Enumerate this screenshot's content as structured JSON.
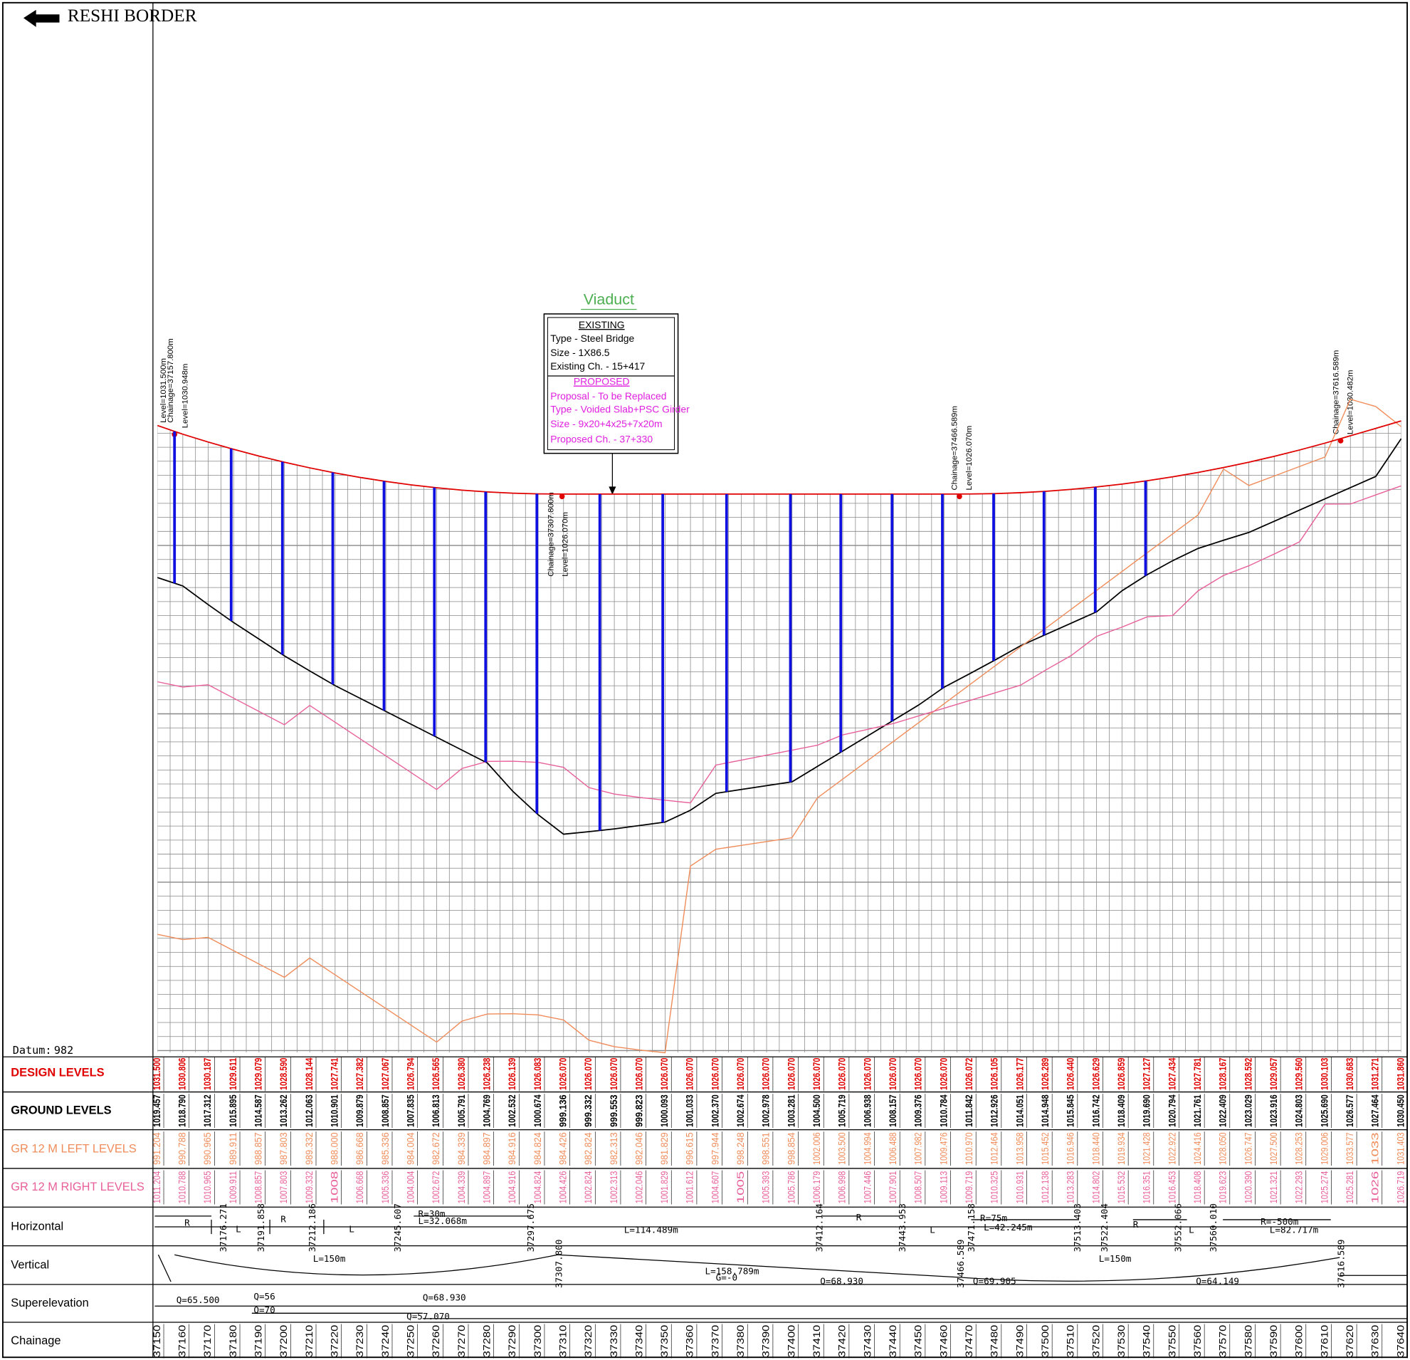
{
  "header": {
    "direction": "RESHI BORDER"
  },
  "datum": {
    "label": "Datum:",
    "value": 982
  },
  "viaduct": {
    "title": "Viaduct",
    "existing_heading": "EXISTING",
    "existing": [
      "Type - Steel Bridge",
      "Size - 1X86.5",
      "Existing Ch. - 15+417"
    ],
    "proposed_heading": "PROPOSED",
    "proposed": [
      "Proposal - To be Replaced",
      "Type - Voided Slab+PSC Girder",
      "Size - 9x20+4x25+7x20m",
      "Proposed Ch. - 37+330"
    ]
  },
  "annotations": [
    "Level=1031.500m",
    "Chainage=37157.800m",
    "Level=1030.948m",
    "Chainage=37307.800m",
    "Level=1026.070m",
    "Chainage=37466.589m",
    "Level=1026.070m",
    "Chainage=37616.589m",
    "Level=1030.482m"
  ],
  "table": {
    "row_labels": [
      "DESIGN LEVELS",
      "GROUND LEVELS",
      "GR 12 M LEFT LEVELS",
      "GR 12 M RIGHT LEVELS",
      "Horizontal",
      "Vertical",
      "Superelevation",
      "Chainage"
    ],
    "chainage": [
      "37150",
      "37160",
      "37170",
      "37180",
      "37190",
      "37200",
      "37210",
      "37220",
      "37230",
      "37240",
      "37250",
      "37260",
      "37270",
      "37280",
      "37290",
      "37300",
      "37310",
      "37320",
      "37330",
      "37340",
      "37350",
      "37360",
      "37370",
      "37380",
      "37390",
      "37400",
      "37410",
      "37420",
      "37430",
      "37440",
      "37450",
      "37460",
      "37470",
      "37480",
      "37490",
      "37500",
      "37510",
      "37520",
      "37530",
      "37540",
      "37550",
      "37560",
      "37570",
      "37580",
      "37590",
      "37600",
      "37610",
      "37620",
      "37630",
      "37640"
    ],
    "design": [
      "1031.500",
      "1030.806",
      "1030.187",
      "1029.611",
      "1029.079",
      "1028.590",
      "1028.144",
      "1027.741",
      "1027.382",
      "1027.067",
      "1026.794",
      "1026.565",
      "1026.380",
      "1026.238",
      "1026.139",
      "1026.083",
      "1026.070",
      "1026.070",
      "1026.070",
      "1026.070",
      "1026.070",
      "1026.070",
      "1026.070",
      "1026.070",
      "1026.070",
      "1026.070",
      "1026.070",
      "1026.070",
      "1026.070",
      "1026.070",
      "1026.070",
      "1026.070",
      "1026.072",
      "1026.105",
      "1026.177",
      "1026.289",
      "1026.440",
      "1026.629",
      "1026.859",
      "1027.127",
      "1027.434",
      "1027.781",
      "1028.167",
      "1028.592",
      "1029.057",
      "1029.560",
      "1030.103",
      "1030.683",
      "1031.271",
      "1031.860"
    ],
    "ground": [
      "1019.457",
      "1018.790",
      "1017.312",
      "1015.895",
      "1014.587",
      "1013.262",
      "1012.063",
      "1010.901",
      "1009.879",
      "1008.857",
      "1007.835",
      "1006.813",
      "1005.791",
      "1004.769",
      "1002.532",
      "1000.674",
      "999.136",
      "999.332",
      "999.553",
      "999.823",
      "1000.093",
      "1001.033",
      "1002.370",
      "1002.674",
      "1002.978",
      "1003.281",
      "1004.500",
      "1005.719",
      "1006.938",
      "1008.157",
      "1009.376",
      "1010.784",
      "1011.842",
      "1012.926",
      "1014.051",
      "1014.948",
      "1015.845",
      "1016.742",
      "1018.409",
      "1019.690",
      "1020.794",
      "1021.761",
      "1022.409",
      "1023.029",
      "1023.916",
      "1024.803",
      "1025.690",
      "1026.577",
      "1027.464",
      "1030.450"
    ],
    "left": [
      "991.204",
      "990.788",
      "990.965",
      "989.911",
      "988.857",
      "987.803",
      "989.332",
      "988.000",
      "986.668",
      "985.336",
      "984.004",
      "982.672",
      "984.339",
      "984.897",
      "984.916",
      "984.824",
      "984.426",
      "982.824",
      "982.313",
      "982.046",
      "981.829",
      "996.615",
      "997.944",
      "998.248",
      "998.551",
      "998.854",
      "1002.006",
      "1003.500",
      "1004.994",
      "1006.488",
      "1007.982",
      "1009.476",
      "1010.970",
      "1012.464",
      "1013.958",
      "1015.452",
      "1016.946",
      "1018.440",
      "1019.934",
      "1021.428",
      "1022.922",
      "1024.416",
      "1028.050",
      "1026.747",
      "1027.500",
      "1028.253",
      "1029.006",
      "1033.577",
      "1033",
      "1031.403"
    ],
    "right": [
      "1011.204",
      "1010.788",
      "1010.965",
      "1009.911",
      "1008.857",
      "1007.803",
      "1009.332",
      "1008",
      "1006.668",
      "1005.336",
      "1004.004",
      "1002.672",
      "1004.339",
      "1004.897",
      "1004.916",
      "1004.824",
      "1004.426",
      "1002.824",
      "1002.313",
      "1002.046",
      "1001.829",
      "1001.612",
      "1004.607",
      "1005",
      "1005.393",
      "1005.786",
      "1006.179",
      "1006.998",
      "1007.446",
      "1007.901",
      "1008.507",
      "1009.113",
      "1009.719",
      "1010.325",
      "1010.931",
      "1012.138",
      "1013.283",
      "1014.802",
      "1015.532",
      "1016.351",
      "1016.453",
      "1018.408",
      "1019.623",
      "1020.390",
      "1021.321",
      "1022.293",
      "1025.274",
      "1025.281",
      "1026",
      "1026.719"
    ]
  },
  "horizontal": [
    "R",
    "L",
    "37176.271",
    "37191.858",
    "R",
    "37212.186",
    "L",
    "37245.607",
    "R=30m",
    "L=32.068m",
    "37297.675",
    "L=114.489m",
    "37412.164",
    "R",
    "37443.953",
    "L",
    "37471.158",
    "R=75m",
    "L=42.245m",
    "37513.403",
    "37522.404",
    "R",
    "37552.066",
    "L",
    "37560.010",
    "R=-500m",
    "L=82.717m"
  ],
  "vertical": [
    "L=150m",
    "37307.800",
    "L=158.789m",
    "G=-0",
    "Q=68.930",
    "37466.589",
    "Q=69.905",
    "L=150m",
    "Q=64.149",
    "37616.589"
  ],
  "superelevation": [
    "Q=65.500",
    "Q=56",
    "Q=70",
    "Q=68.930",
    "Q=57.070"
  ]
}
